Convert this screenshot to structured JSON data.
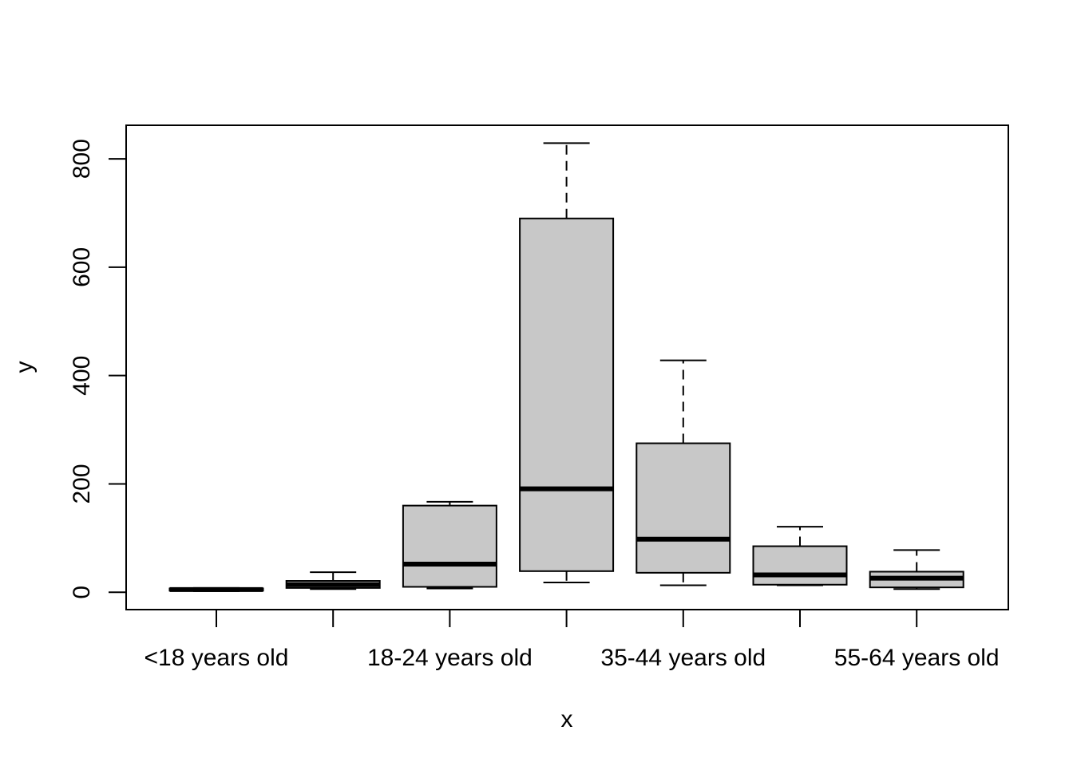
{
  "chart_data": {
    "type": "boxplot",
    "xlabel": "x",
    "ylabel": "y",
    "ylim": [
      -32,
      862
    ],
    "yticks": [
      0,
      200,
      400,
      600,
      800
    ],
    "grid": false,
    "box_fill": "#c8c8c8",
    "categories": [
      "<18 years old",
      "",
      "18-24 years old",
      "",
      "35-44 years old",
      "",
      "55-64 years old"
    ],
    "boxes": [
      {
        "whisker_low": 2,
        "q1": 3,
        "median": 5,
        "q3": 7,
        "whisker_high": 8
      },
      {
        "whisker_low": 6,
        "q1": 8,
        "median": 14,
        "q3": 21,
        "whisker_high": 37
      },
      {
        "whisker_low": 7,
        "q1": 10,
        "median": 52,
        "q3": 160,
        "whisker_high": 167
      },
      {
        "whisker_low": 18,
        "q1": 39,
        "median": 191,
        "q3": 690,
        "whisker_high": 829
      },
      {
        "whisker_low": 13,
        "q1": 36,
        "median": 98,
        "q3": 275,
        "whisker_high": 428
      },
      {
        "whisker_low": 13,
        "q1": 14,
        "median": 32,
        "q3": 85,
        "whisker_high": 121
      },
      {
        "whisker_low": 6,
        "q1": 9,
        "median": 26,
        "q3": 38,
        "whisker_high": 78
      }
    ]
  }
}
